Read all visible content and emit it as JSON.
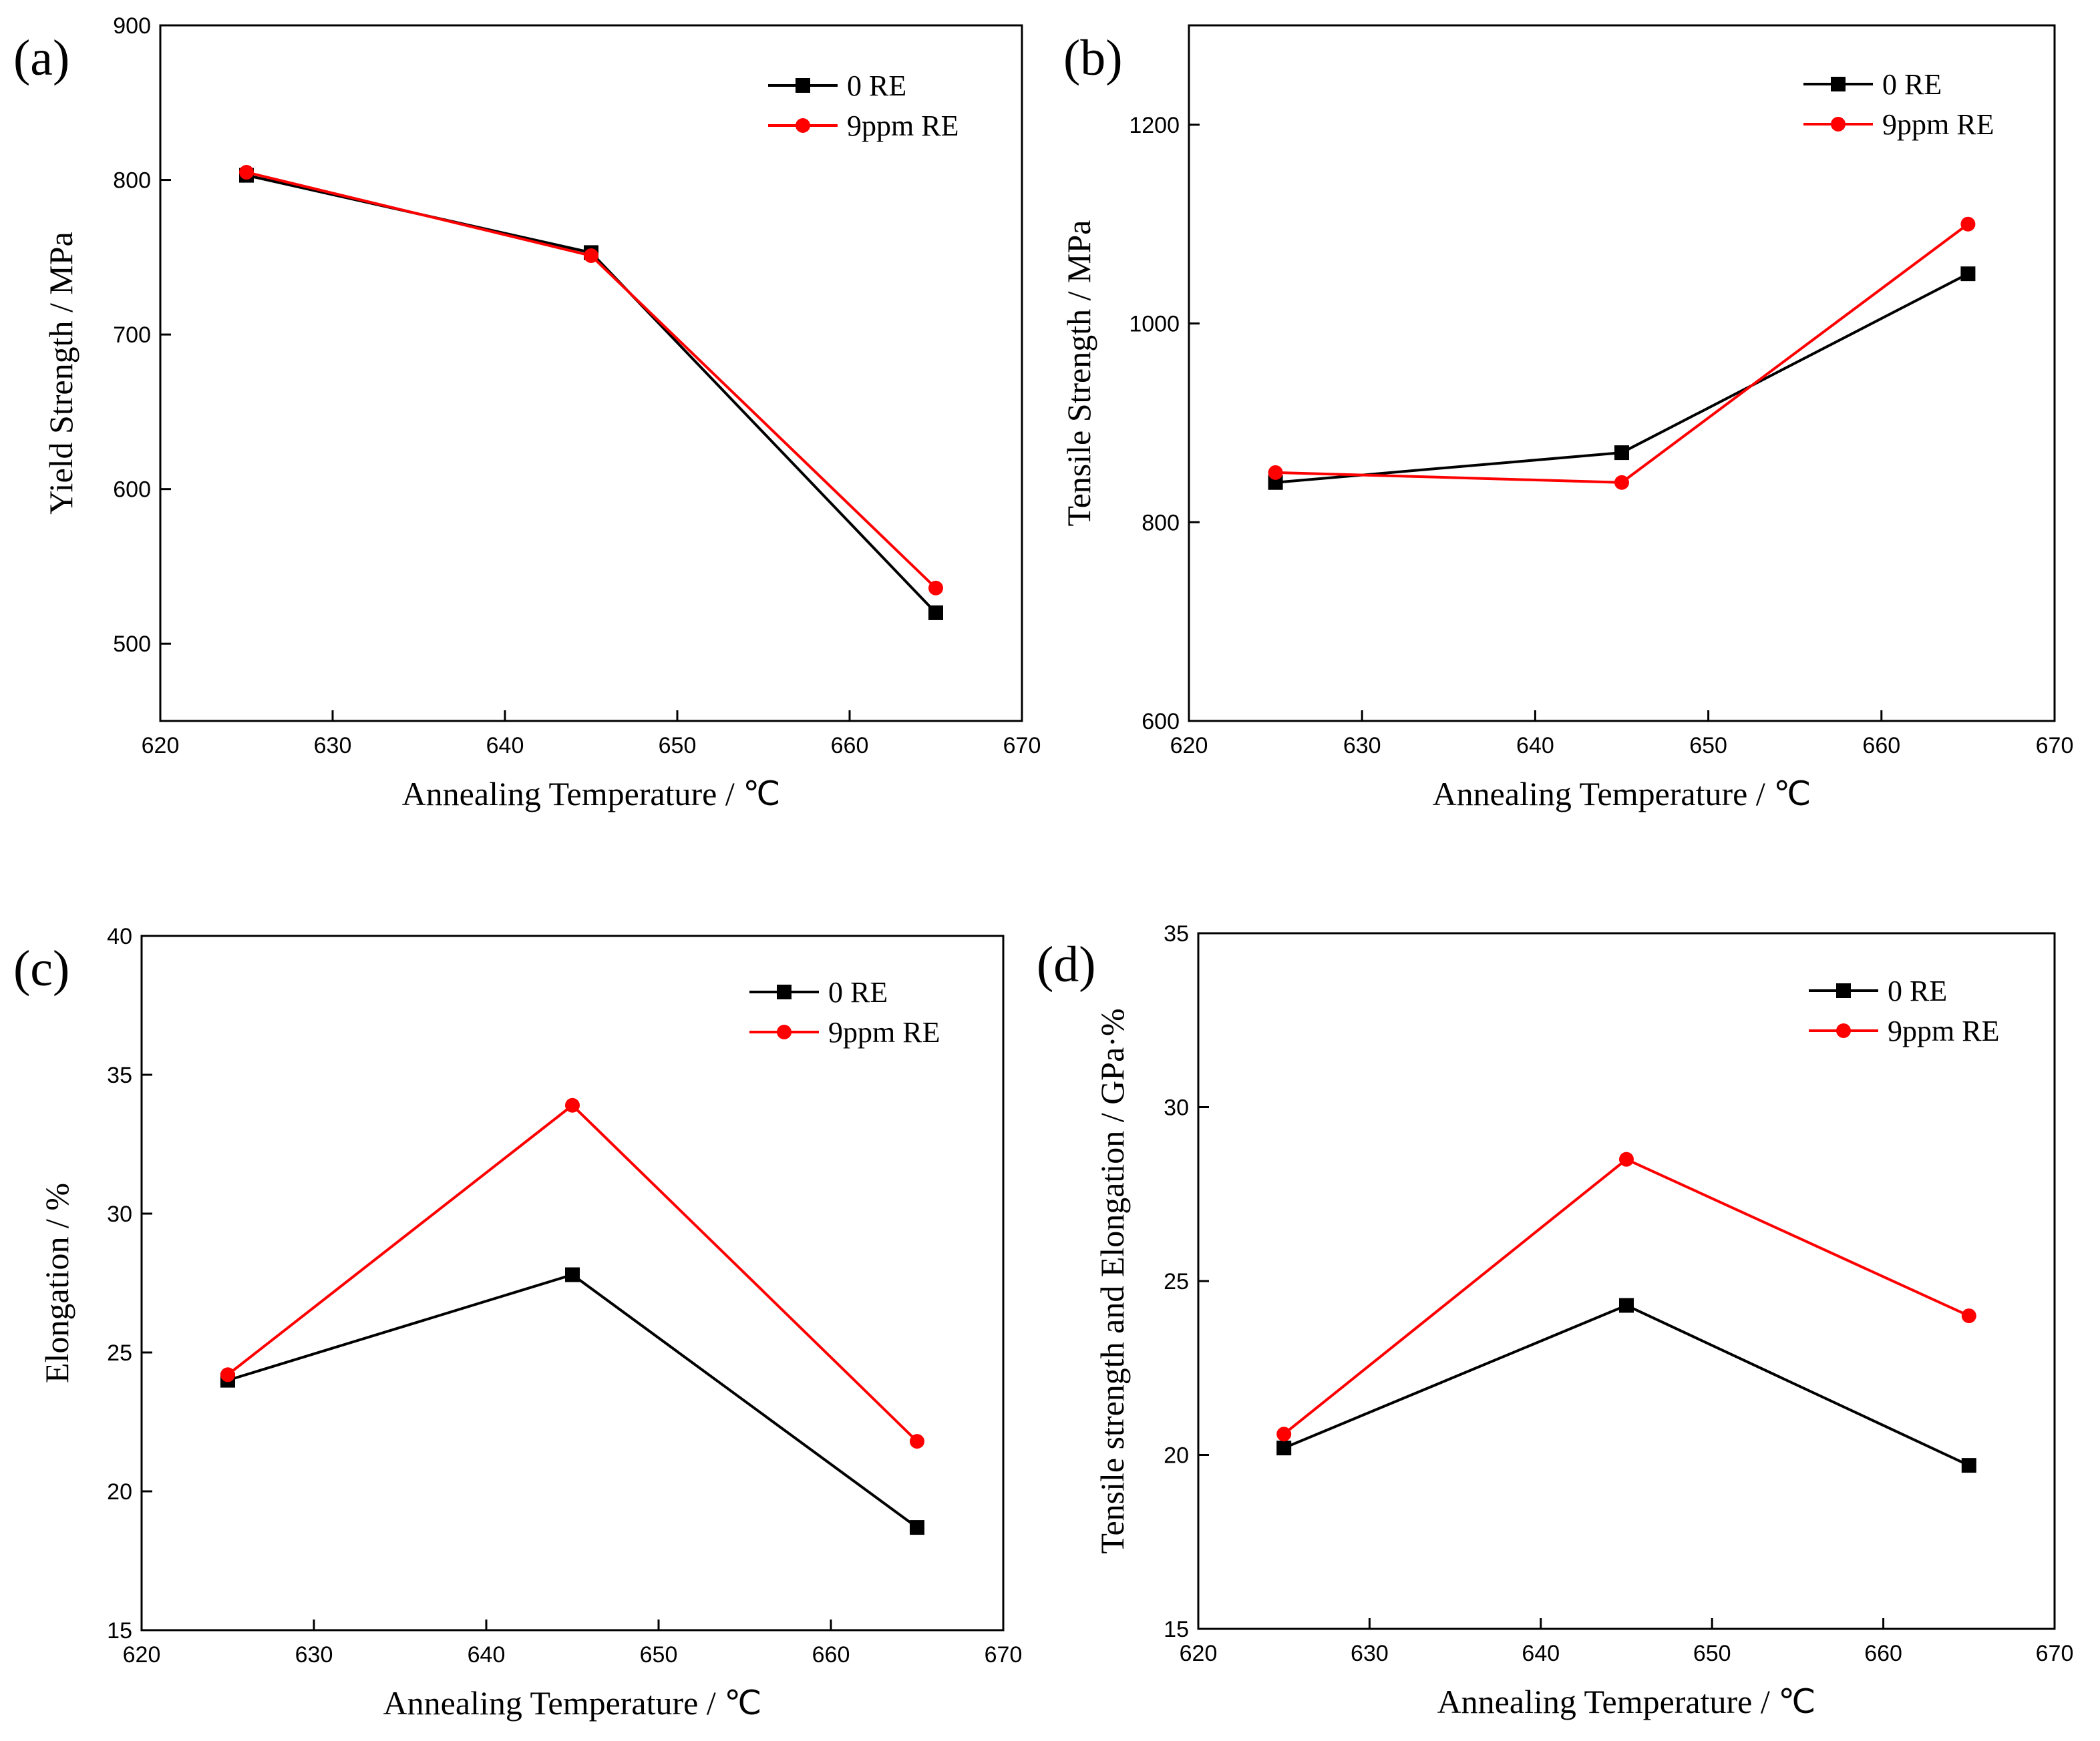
{
  "figure": {
    "panels": [
      {
        "id": "a",
        "panel_label": "(a)",
        "chart_data": {
          "type": "line",
          "title": "",
          "xlabel": "Annealing Temperature / ℃",
          "ylabel": "Yield Strength / MPa",
          "x": [
            625,
            645,
            665
          ],
          "xlim": [
            620,
            670
          ],
          "ylim": [
            450,
            900
          ],
          "xticks": [
            620,
            630,
            640,
            650,
            660,
            670
          ],
          "yticks": [
            500,
            600,
            700,
            800,
            900
          ],
          "grid": false,
          "legend_position": "top-right",
          "series": [
            {
              "name": "0 RE",
              "color": "#000000",
              "marker": "square",
              "values": [
                803,
                753,
                520
              ]
            },
            {
              "name": "9ppm RE",
              "color": "#ff0000",
              "marker": "circle",
              "values": [
                805,
                751,
                536
              ]
            }
          ]
        }
      },
      {
        "id": "b",
        "panel_label": "(b)",
        "chart_data": {
          "type": "line",
          "title": "",
          "xlabel": "Annealing Temperature / ℃",
          "ylabel": "Tensile Strength / MPa",
          "x": [
            625,
            645,
            665
          ],
          "xlim": [
            620,
            670
          ],
          "ylim": [
            600,
            1300
          ],
          "xticks": [
            620,
            630,
            640,
            650,
            660,
            670
          ],
          "yticks": [
            600,
            800,
            1000,
            1200
          ],
          "grid": false,
          "legend_position": "top-right",
          "series": [
            {
              "name": "0 RE",
              "color": "#000000",
              "marker": "square",
              "values": [
                840,
                870,
                1050
              ]
            },
            {
              "name": "9ppm RE",
              "color": "#ff0000",
              "marker": "circle",
              "values": [
                850,
                840,
                1100
              ]
            }
          ]
        }
      },
      {
        "id": "c",
        "panel_label": "(c)",
        "chart_data": {
          "type": "line",
          "title": "",
          "xlabel": "Annealing Temperature / ℃",
          "ylabel": "Elongation / %",
          "x": [
            625,
            645,
            665
          ],
          "xlim": [
            620,
            670
          ],
          "ylim": [
            15,
            40
          ],
          "xticks": [
            620,
            630,
            640,
            650,
            660,
            670
          ],
          "yticks": [
            15,
            20,
            25,
            30,
            35,
            40
          ],
          "grid": false,
          "legend_position": "top-right",
          "series": [
            {
              "name": "0 RE",
              "color": "#000000",
              "marker": "square",
              "values": [
                24.0,
                27.8,
                18.7
              ]
            },
            {
              "name": "9ppm RE",
              "color": "#ff0000",
              "marker": "circle",
              "values": [
                24.2,
                33.9,
                21.8
              ]
            }
          ]
        }
      },
      {
        "id": "d",
        "panel_label": "(d)",
        "chart_data": {
          "type": "line",
          "title": "",
          "xlabel": "Annealing Temperature / ℃",
          "ylabel": "Tensile strength and Elongation / GPa·%",
          "x": [
            625,
            645,
            665
          ],
          "xlim": [
            620,
            670
          ],
          "ylim": [
            15,
            35
          ],
          "xticks": [
            620,
            630,
            640,
            650,
            660,
            670
          ],
          "yticks": [
            15,
            20,
            25,
            30,
            35
          ],
          "grid": false,
          "legend_position": "top-right",
          "series": [
            {
              "name": "0 RE",
              "color": "#000000",
              "marker": "square",
              "values": [
                20.2,
                24.3,
                19.7
              ]
            },
            {
              "name": "9ppm RE",
              "color": "#ff0000",
              "marker": "circle",
              "values": [
                20.6,
                28.5,
                24.0
              ]
            }
          ]
        }
      }
    ]
  }
}
